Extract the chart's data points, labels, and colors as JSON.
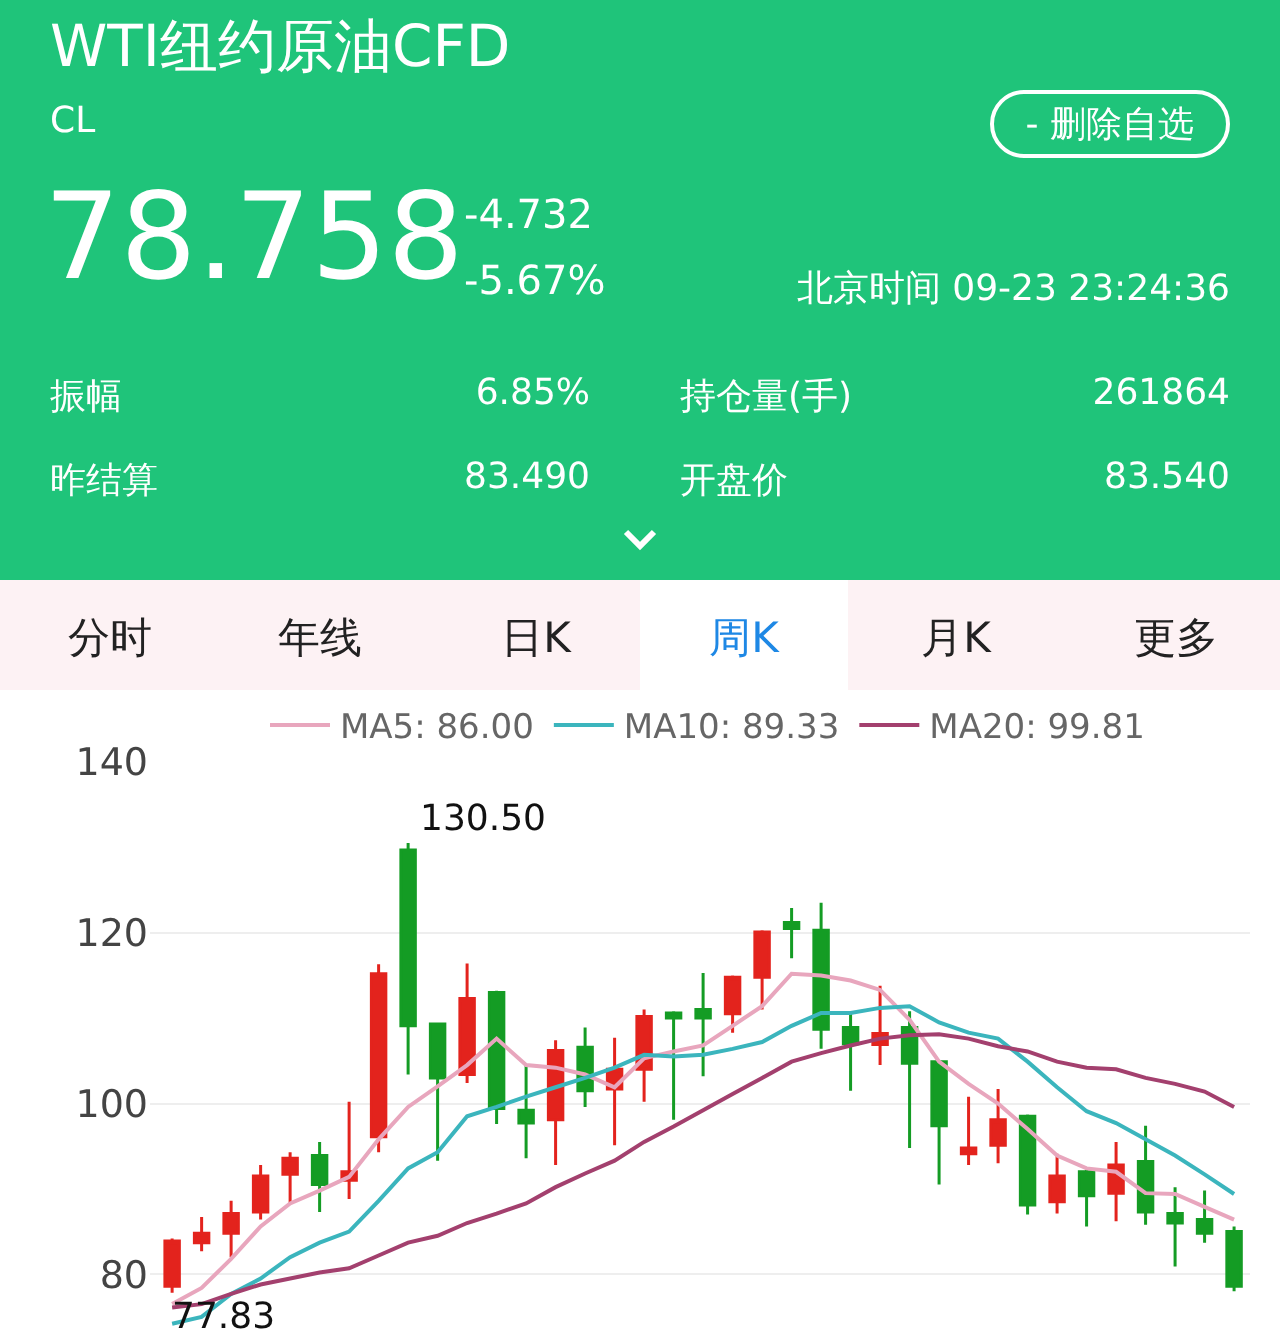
{
  "chart_data": {
    "type": "candlestick",
    "title": "WTI纽约原油CFD",
    "subtitle": "CL",
    "categories": [
      null,
      null,
      null,
      null,
      null,
      null,
      null,
      null,
      null,
      null,
      null,
      null,
      null,
      null,
      null,
      null,
      null,
      null,
      null,
      null,
      null,
      null,
      null,
      null,
      null,
      null,
      null,
      null,
      null,
      null,
      null,
      null,
      null,
      null,
      null,
      null,
      null
    ],
    "ohlc": [
      [
        78.6,
        84.2,
        77.83,
        83.9
      ],
      [
        83.7,
        86.7,
        82.7,
        84.8
      ],
      [
        84.8,
        88.6,
        82,
        87.1
      ],
      [
        87.3,
        92.8,
        86.4,
        91.5
      ],
      [
        91.7,
        94.3,
        88.3,
        93.6
      ],
      [
        93.9,
        95.5,
        87.3,
        90.5
      ],
      [
        91,
        100.2,
        88.8,
        92
      ],
      [
        96.1,
        116.3,
        94.3,
        115.2
      ],
      [
        129.7,
        130.5,
        103.4,
        109.1
      ],
      [
        109.3,
        109.5,
        93.3,
        103
      ],
      [
        103.4,
        116.4,
        102.4,
        112.3
      ],
      [
        113,
        113.2,
        97.6,
        99.4
      ],
      [
        99.2,
        104.5,
        93.6,
        97.7
      ],
      [
        98.1,
        107.4,
        92.8,
        106.2
      ],
      [
        106.6,
        108.9,
        99.6,
        101.5
      ],
      [
        101.7,
        107.7,
        95.1,
        104
      ],
      [
        104,
        111,
        100.2,
        110.2
      ],
      [
        110.6,
        110.8,
        98.1,
        110
      ],
      [
        111,
        115.3,
        103.2,
        110
      ],
      [
        110.5,
        115,
        108.3,
        114.8
      ],
      [
        114.8,
        120.3,
        111,
        120.1
      ],
      [
        121.2,
        122.9,
        117,
        120.5
      ],
      [
        120.3,
        123.5,
        106.4,
        108.7
      ],
      [
        108.9,
        110.5,
        101.5,
        107
      ],
      [
        106.9,
        113.8,
        104.5,
        108.2
      ],
      [
        108.9,
        110.8,
        94.8,
        104.7
      ],
      [
        104.9,
        105,
        90.5,
        97.4
      ],
      [
        94.1,
        100.8,
        92.8,
        94.8
      ],
      [
        95.1,
        101.7,
        93,
        98.1
      ],
      [
        98.5,
        98.7,
        87,
        88.1
      ],
      [
        88.5,
        94.1,
        87.1,
        91.5
      ],
      [
        92,
        92.2,
        85.6,
        89.2
      ],
      [
        89.5,
        95.5,
        86.2,
        92.8
      ],
      [
        93.2,
        97.4,
        85.8,
        87.3
      ],
      [
        87.1,
        90.2,
        80.9,
        86
      ],
      [
        86.4,
        89.8,
        83.7,
        84.8
      ],
      [
        85,
        85.6,
        78,
        78.6
      ]
    ],
    "series": [
      {
        "name": "MA5: 86.00",
        "type": "line",
        "color": "#e8a6bd",
        "values": [
          76.5,
          78.4,
          81.8,
          85.6,
          88.3,
          89.8,
          91.4,
          95.8,
          99.6,
          102,
          104.5,
          107.6,
          104.5,
          104.2,
          103.4,
          101.9,
          105.3,
          106.1,
          106.8,
          109.1,
          111.4,
          115.2,
          115,
          114.4,
          113.3,
          109.8,
          104.9,
          102.3,
          100,
          97,
          93.9,
          92.4,
          92,
          89.5,
          89.4,
          87.9,
          86.4
        ]
      },
      {
        "name": "MA10: 89.33",
        "type": "line",
        "color": "#3bb5bd",
        "values": [
          74.2,
          75,
          77.7,
          79.5,
          82,
          83.7,
          85,
          88.6,
          92.4,
          94.3,
          98.5,
          99.6,
          100.8,
          101.9,
          103,
          104.2,
          105.7,
          105.5,
          105.7,
          106.4,
          107.2,
          109.1,
          110.6,
          110.6,
          111.2,
          111.4,
          109.5,
          108.3,
          107.6,
          104.9,
          101.9,
          99.1,
          97.7,
          95.8,
          93.9,
          91.7,
          89.4
        ]
      },
      {
        "name": "MA20: 99.81",
        "type": "line",
        "color": "#a3406e",
        "values": [
          76.1,
          76.5,
          77.7,
          78.8,
          79.5,
          80.2,
          80.7,
          82.2,
          83.7,
          84.5,
          86,
          87.1,
          88.3,
          90.2,
          91.8,
          93.3,
          95.5,
          97.3,
          99.2,
          101.1,
          103,
          104.9,
          105.9,
          106.8,
          107.6,
          108,
          108.1,
          107.6,
          106.7,
          106.1,
          104.9,
          104.2,
          104,
          103,
          102.3,
          101.4,
          99.6
        ]
      }
    ],
    "ylim": [
      73,
      140
    ],
    "yticks": [
      80,
      100,
      120,
      140
    ],
    "grid": "y",
    "legend": "top",
    "tick_labels": "y",
    "line_style": "solid",
    "marker": "none",
    "annotations": [
      "78.758",
      "-4.732",
      "-5.67%",
      "北京时间 09-23 23:24:36",
      "振幅",
      "6.85%",
      "持仓量(手)",
      "261864",
      "昨结算",
      "83.490",
      "开盘价",
      "83.540",
      "- 删除自选",
      "分时",
      "年线",
      "日K",
      "周K",
      "月K",
      "更多",
      "130.50",
      "77.83"
    ]
  }
}
